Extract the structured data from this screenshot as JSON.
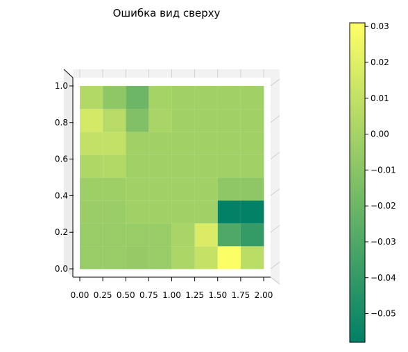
{
  "chart_data": {
    "type": "heatmap",
    "title": "Ошибка вид сверху",
    "view": "3d surface, top view",
    "x_ticks": [
      "0.00",
      "0.25",
      "0.50",
      "0.75",
      "1.00",
      "1.25",
      "1.50",
      "1.75",
      "2.00"
    ],
    "y_ticks": [
      "0.0",
      "0.2",
      "0.4",
      "0.6",
      "0.8",
      "1.0"
    ],
    "x": [
      0.0,
      0.25,
      0.5,
      0.75,
      1.0,
      1.25,
      1.5,
      1.75,
      2.0
    ],
    "y": [
      0.0,
      0.2,
      0.4,
      0.6,
      0.8,
      1.0
    ],
    "cell_values": [
      [
        -0.005,
        -0.005,
        -0.006,
        -0.005,
        0.002,
        0.011,
        0.03,
        0.007
      ],
      [
        -0.005,
        -0.005,
        -0.005,
        -0.005,
        0.001,
        0.018,
        -0.03,
        -0.04
      ],
      [
        -0.004,
        -0.004,
        -0.002,
        -0.002,
        -0.002,
        -0.002,
        -0.057,
        -0.057
      ],
      [
        -0.003,
        -0.003,
        -0.002,
        -0.002,
        -0.002,
        -0.002,
        -0.008,
        -0.008
      ],
      [
        0.003,
        0.004,
        -0.002,
        -0.002,
        -0.002,
        -0.002,
        -0.002,
        -0.002
      ],
      [
        0.01,
        0.01,
        -0.002,
        -0.002,
        -0.002,
        -0.002,
        -0.002,
        -0.002
      ],
      [
        0.016,
        0.006,
        -0.013,
        0.001,
        -0.002,
        -0.002,
        -0.002,
        -0.002
      ],
      [
        0.004,
        -0.008,
        -0.02,
        0.0,
        -0.002,
        -0.002,
        -0.002,
        -0.002
      ]
    ],
    "colorbar": {
      "min": -0.058,
      "max": 0.031,
      "ticks": [
        "0.03",
        "0.02",
        "0.01",
        "0.00",
        "−0.01",
        "−0.02",
        "−0.03",
        "−0.04",
        "−0.05"
      ],
      "tick_values": [
        0.03,
        0.02,
        0.01,
        0.0,
        -0.01,
        -0.02,
        -0.03,
        -0.04,
        -0.05
      ],
      "colormap": "summer-like: #008066 (low) → #FFFF66 (high)"
    },
    "grid": true
  }
}
